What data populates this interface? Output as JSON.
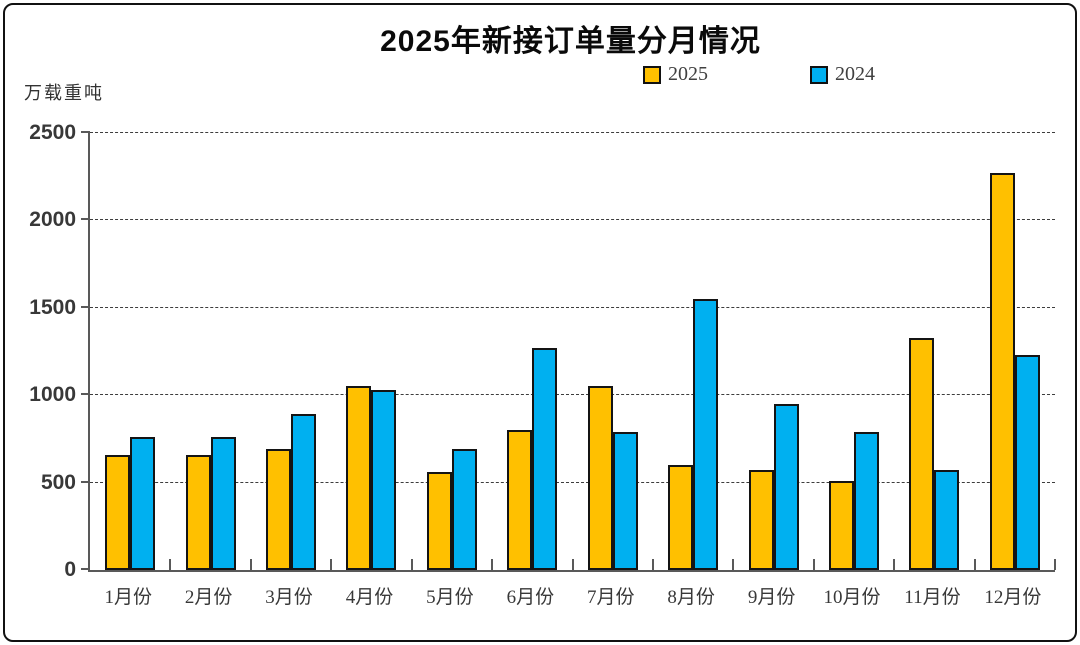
{
  "title": "2025年新接订单量分月情况",
  "y_unit_label": "万载重吨",
  "chart_data": {
    "type": "bar",
    "title": "2025年新接订单量分月情况",
    "xlabel": "",
    "ylabel": "万载重吨",
    "categories": [
      "1月份",
      "2月份",
      "3月份",
      "4月份",
      "5月份",
      "6月份",
      "7月份",
      "8月份",
      "9月份",
      "10月份",
      "11月份",
      "12月份"
    ],
    "series": [
      {
        "name": "2025",
        "color": "#FFC000",
        "values": [
          660,
          660,
          690,
          1050,
          560,
          800,
          1050,
          600,
          570,
          510,
          1330,
          2270
        ]
      },
      {
        "name": "2024",
        "color": "#00B0F0",
        "values": [
          760,
          760,
          890,
          1030,
          690,
          1270,
          790,
          1550,
          950,
          790,
          570,
          1230
        ]
      }
    ],
    "ylim": [
      0,
      2500
    ],
    "ytick_interval": 500,
    "grid": "horizontal-dashed",
    "legend_position": "top-center",
    "bar_outline_color": "#141414",
    "axis_color": "#595959"
  }
}
